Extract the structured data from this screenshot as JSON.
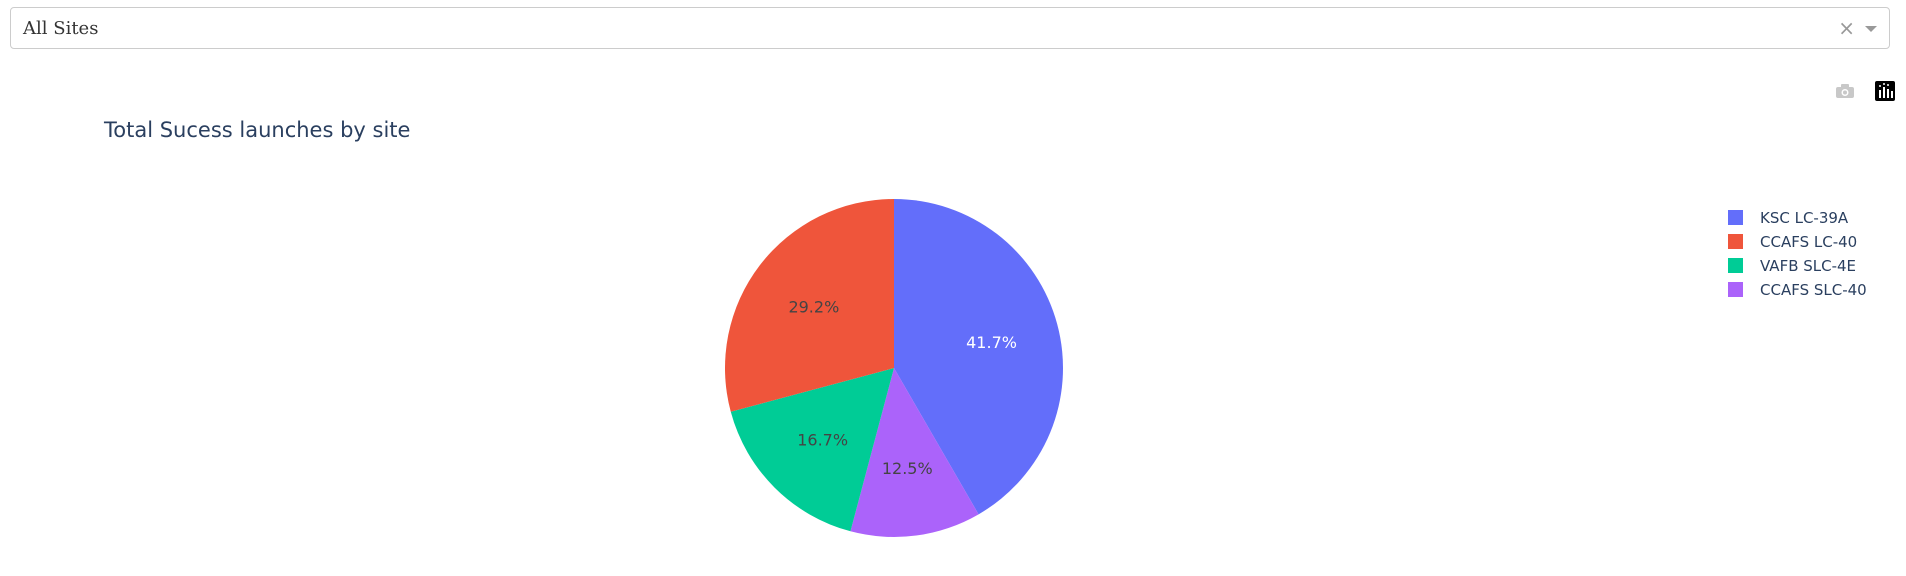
{
  "dropdown": {
    "selected": "All Sites",
    "clear_symbol": "×"
  },
  "modebar": {
    "camera_icon": "camera-icon",
    "plotly_logo_icon": "plotly-logo-icon"
  },
  "chart_data": {
    "type": "pie",
    "title": "Total Sucess launches by site",
    "labels": [
      "KSC LC-39A",
      "CCAFS LC-40",
      "VAFB SLC-4E",
      "CCAFS SLC-40"
    ],
    "values": [
      41.7,
      29.2,
      16.7,
      12.5
    ],
    "display_labels": [
      "41.7%",
      "29.2%",
      "16.7%",
      "12.5%"
    ],
    "colors": [
      "#636efa",
      "#ef553b",
      "#00cc96",
      "#ab63fa"
    ],
    "label_colors": [
      "#ffffff",
      "#444444",
      "#444444",
      "#444444"
    ],
    "slice_order": [
      0,
      3,
      2,
      1
    ],
    "legend_position": "right"
  }
}
